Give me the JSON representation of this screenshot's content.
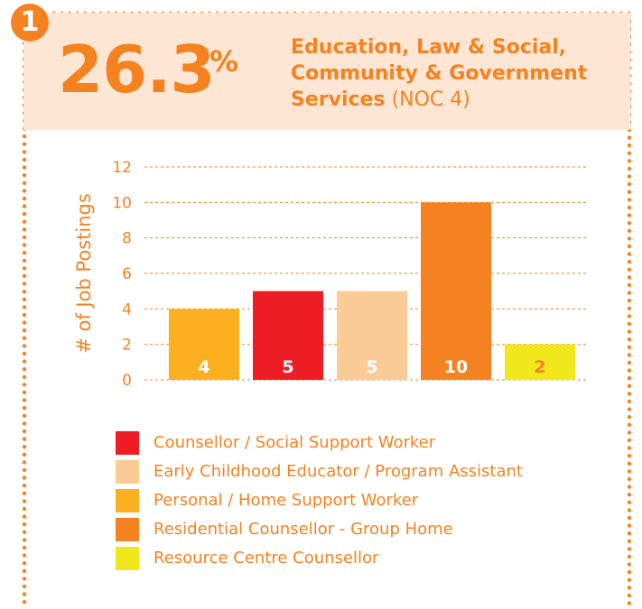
{
  "badge": "1",
  "header": {
    "percent": "26.3",
    "percent_sign": "%",
    "title_line1": "Education, Law & Social,",
    "title_line2": "Community & Government",
    "title_line3_strong": "Services",
    "title_line3_light": "(NOC 4)"
  },
  "colors": {
    "accent": "#f58220",
    "header_bg": "#fde6d4",
    "dot": "#f58220"
  },
  "chart_data": {
    "type": "bar",
    "ylabel": "# of Job Postings",
    "xlabel": "",
    "ylim": [
      0,
      12
    ],
    "yticks": [
      0,
      2,
      4,
      6,
      8,
      10,
      12
    ],
    "grid": true,
    "categories": [
      "Personal / Home Support Worker",
      "Counsellor / Social Support Worker",
      "Early Childhood Educator / Program Assistant",
      "Residential Counsellor - Group Home",
      "Resource Centre Counsellor"
    ],
    "values": [
      4,
      5,
      5,
      10,
      2
    ],
    "bar_colors": [
      "#fbb11f",
      "#ee1c25",
      "#fbcb95",
      "#f58220",
      "#f1e81c"
    ],
    "label_colors": [
      "#ffffff",
      "#ffffff",
      "#ffffff",
      "#ffffff",
      "#f58220"
    ],
    "data_labels": [
      "4",
      "5",
      "5",
      "10",
      "2"
    ],
    "legend": [
      {
        "label": "Counsellor / Social Support Worker",
        "color": "#ee1c25"
      },
      {
        "label": "Early Childhood Educator / Program Assistant",
        "color": "#fbcb95"
      },
      {
        "label": "Personal / Home Support Worker",
        "color": "#fbb11f"
      },
      {
        "label": "Residential Counsellor - Group Home",
        "color": "#f58220"
      },
      {
        "label": "Resource Centre Counsellor",
        "color": "#f1e81c"
      }
    ]
  }
}
